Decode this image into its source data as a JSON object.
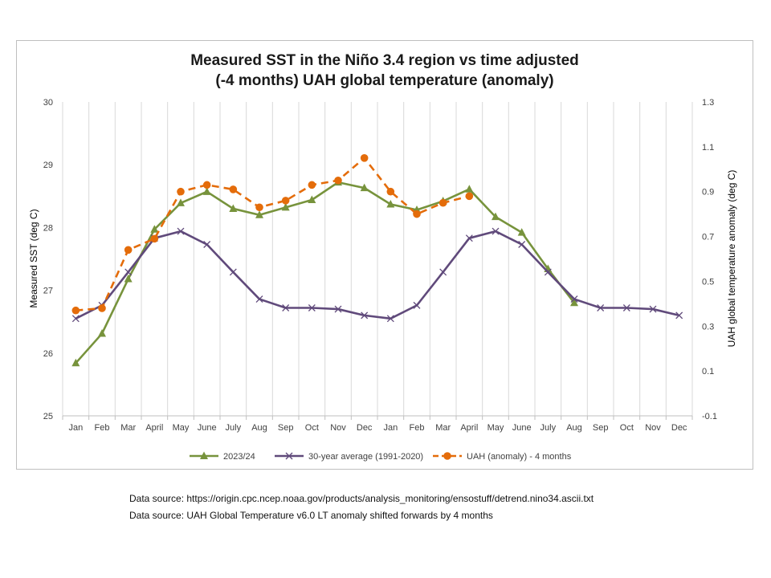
{
  "chart_data": {
    "type": "line",
    "title_lines": [
      "Measured SST in the Niño 3.4 region vs time adjusted",
      "(-4 months) UAH global temperature (anomaly)"
    ],
    "categories": [
      "Jan",
      "Feb",
      "Mar",
      "April",
      "May",
      "June",
      "July",
      "Aug",
      "Sep",
      "Oct",
      "Nov",
      "Dec",
      "Jan",
      "Feb",
      "Mar",
      "April",
      "May",
      "June",
      "July",
      "Aug",
      "Sep",
      "Oct",
      "Nov",
      "Dec"
    ],
    "ylabel_left": "Measured SST (deg C)",
    "ylabel_right": "UAH global temperature anomaly (deg C)",
    "ylim_left": [
      25,
      30
    ],
    "ylim_right": [
      -0.1,
      1.3
    ],
    "yticks_left": [
      "25",
      "26",
      "27",
      "28",
      "29",
      "30"
    ],
    "yticks_right": [
      "-0.1",
      "0.1",
      "0.3",
      "0.5",
      "0.7",
      "0.9",
      "1.1",
      "1.3"
    ],
    "grid": "vertical",
    "legend_position": "bottom",
    "series": [
      {
        "name": "2023/24",
        "axis": "left",
        "color": "#77933c",
        "marker": "triangle",
        "dash": "solid",
        "values": [
          25.84,
          26.31,
          27.18,
          27.97,
          28.39,
          28.57,
          28.3,
          28.2,
          28.32,
          28.44,
          28.72,
          28.63,
          28.37,
          28.28,
          28.42,
          28.61,
          28.17,
          27.92,
          27.34,
          26.8,
          null,
          null,
          null,
          null
        ]
      },
      {
        "name": "30-year average (1991-2020)",
        "axis": "left",
        "color": "#604a7b",
        "marker": "x",
        "dash": "solid",
        "values": [
          26.55,
          26.76,
          27.29,
          27.83,
          27.94,
          27.73,
          27.29,
          26.86,
          26.72,
          26.72,
          26.7,
          26.6,
          26.55,
          26.76,
          27.29,
          27.83,
          27.94,
          27.73,
          27.29,
          26.86,
          26.72,
          26.72,
          26.7,
          26.6
        ]
      },
      {
        "name": "UAH (anomaly) - 4 months",
        "axis": "right",
        "color": "#e46c0a",
        "marker": "circle",
        "dash": "dashed",
        "values": [
          0.37,
          0.38,
          0.64,
          0.69,
          0.9,
          0.93,
          0.91,
          0.83,
          0.86,
          0.93,
          0.95,
          1.05,
          0.9,
          0.8,
          0.85,
          0.88,
          null,
          null,
          null,
          null,
          null,
          null,
          null,
          null
        ]
      }
    ]
  },
  "sources": [
    "Data source: https://origin.cpc.ncep.noaa.gov/products/analysis_monitoring/ensostuff/detrend.nino34.ascii.txt",
    "Data source: UAH Global Temperature v6.0 LT anomaly shifted forwards by 4 months"
  ]
}
